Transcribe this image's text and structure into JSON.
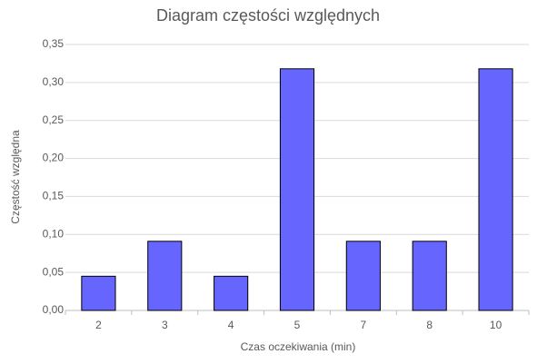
{
  "chart_data": {
    "type": "bar",
    "title": "Diagram częstości względnych",
    "x_label": "Czas oczekiwania (min)",
    "y_label": "Częstość względna",
    "categories": [
      "2",
      "3",
      "4",
      "5",
      "7",
      "8",
      "10"
    ],
    "values": [
      0.045,
      0.091,
      0.045,
      0.318,
      0.091,
      0.091,
      0.318
    ],
    "color": "#6666ff",
    "ylim": [
      0,
      0.35
    ],
    "yticks": [
      {
        "value": 0,
        "label": "0,00"
      },
      {
        "value": 0.05,
        "label": "0,05"
      },
      {
        "value": 0.1,
        "label": "0,10"
      },
      {
        "value": 0.15,
        "label": "0,15"
      },
      {
        "value": 0.2,
        "label": "0,20"
      },
      {
        "value": 0.25,
        "label": "0,25"
      },
      {
        "value": 0.3,
        "label": "0,30"
      },
      {
        "value": 0.35,
        "label": "0,35"
      }
    ],
    "grid": true
  }
}
